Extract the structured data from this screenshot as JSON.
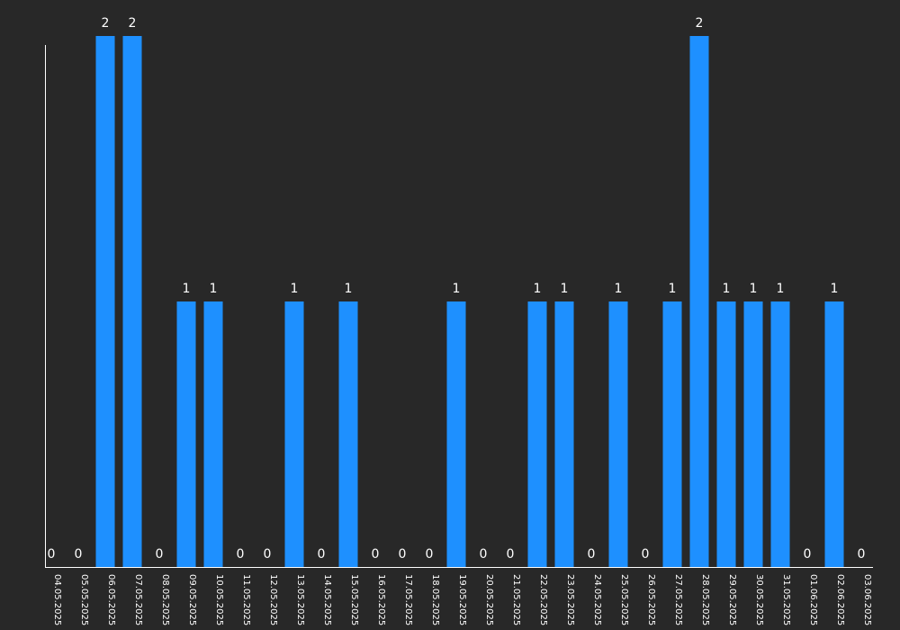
{
  "chart_data": {
    "type": "bar",
    "categories": [
      "04.05.2025",
      "05.05.2025",
      "06.05.2025",
      "07.05.2025",
      "08.05.2025",
      "09.05.2025",
      "10.05.2025",
      "11.05.2025",
      "12.05.2025",
      "13.05.2025",
      "14.05.2025",
      "15.05.2025",
      "16.05.2025",
      "17.05.2025",
      "18.05.2025",
      "19.05.2025",
      "20.05.2025",
      "21.05.2025",
      "22.05.2025",
      "23.05.2025",
      "24.05.2025",
      "25.05.2025",
      "26.05.2025",
      "27.05.2025",
      "28.05.2025",
      "29.05.2025",
      "30.05.2025",
      "31.05.2025",
      "01.06.2025",
      "02.06.2025",
      "03.06.2025"
    ],
    "values": [
      0,
      0,
      2,
      2,
      0,
      1,
      1,
      0,
      0,
      1,
      0,
      1,
      0,
      0,
      0,
      1,
      0,
      0,
      1,
      1,
      0,
      1,
      0,
      1,
      2,
      1,
      1,
      1,
      0,
      1,
      0
    ],
    "ylim": [
      0,
      2
    ],
    "grid": false,
    "legend": "none",
    "colors": {
      "bar": "#1e90ff",
      "background": "#282828",
      "axis": "#ffffff",
      "text": "#ffffff"
    }
  }
}
